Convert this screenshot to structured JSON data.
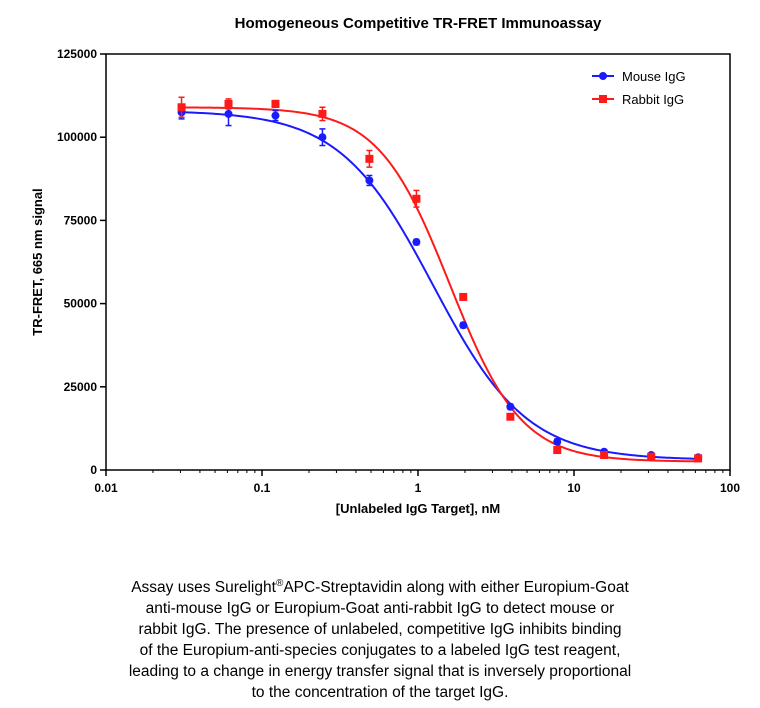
{
  "chart_data": {
    "type": "scatter",
    "title": "Homogeneous Competitive TR-FRET  Immunoassay",
    "xlabel": "[Unlabeled IgG Target], nM",
    "ylabel": "TR-FRET, 665 nm signal",
    "xscale": "log",
    "xlim": [
      0.01,
      100
    ],
    "ylim": [
      0,
      125000
    ],
    "x_ticks": [
      "0.01",
      "0.1",
      "1",
      "10",
      "100"
    ],
    "y_ticks": [
      "0",
      "25000",
      "50000",
      "75000",
      "100000",
      "125000"
    ],
    "legend_position": "top-right",
    "series": [
      {
        "name": "Mouse IgG",
        "color": "#1a1aff",
        "marker": "circle",
        "x": [
          0.0305,
          0.061,
          0.122,
          0.244,
          0.488,
          0.977,
          1.95,
          3.91,
          7.81,
          15.6,
          31.25,
          62.5
        ],
        "y": [
          107500,
          107000,
          106500,
          100000,
          87000,
          68500,
          43500,
          19000,
          8500,
          5500,
          4500,
          3800
        ],
        "err": [
          2000,
          3500,
          1500,
          2500,
          1500,
          800,
          800,
          800,
          800,
          600,
          500,
          500
        ],
        "fit": {
          "top": 108000,
          "bottom": 3000,
          "ec50": 1.25,
          "hill": 1.45
        }
      },
      {
        "name": "Rabbit IgG",
        "color": "#ff1a1a",
        "marker": "square",
        "x": [
          0.0305,
          0.061,
          0.122,
          0.244,
          0.488,
          0.977,
          1.95,
          3.91,
          7.81,
          15.6,
          31.25,
          62.5
        ],
        "y": [
          109000,
          110000,
          110000,
          107000,
          93500,
          81500,
          52000,
          16000,
          6000,
          4500,
          4000,
          3500
        ],
        "err": [
          3000,
          1500,
          1000,
          2000,
          2500,
          2500,
          800,
          800,
          800,
          500,
          500,
          500
        ],
        "fit": {
          "top": 109000,
          "bottom": 2500,
          "ec50": 1.6,
          "hill": 1.9
        }
      }
    ]
  },
  "caption": {
    "line1_pre": "Assay uses Surelight",
    "line1_reg": "®",
    "line1_post": "APC-Streptavidin along with either Europium-Goat",
    "line2": "anti-mouse IgG or Europium-Goat anti-rabbit IgG to detect mouse or",
    "line3": "rabbit IgG. The presence of unlabeled, competitive IgG inhibits binding",
    "line4": "of the Europium-anti-species conjugates to a labeled IgG test reagent,",
    "line5": "leading to a change in energy transfer signal that is inversely proportional",
    "line6": "to the concentration of the target IgG."
  }
}
